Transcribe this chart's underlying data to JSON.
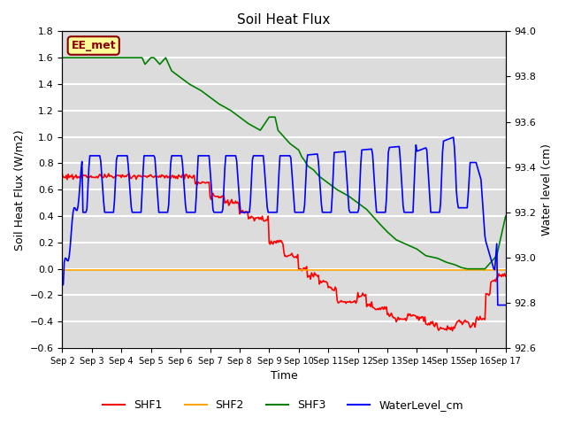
{
  "title": "Soil Heat Flux",
  "ylabel_left": "Soil Heat Flux (W/m2)",
  "ylabel_right": "Water level (cm)",
  "xlabel": "Time",
  "ylim_left": [
    -0.6,
    1.8
  ],
  "ylim_right": [
    92.6,
    94.0
  ],
  "bg_color": "#dcdcdc",
  "annotation_text": "EE_met",
  "annotation_facecolor": "#ffff99",
  "annotation_edgecolor": "#8b0000",
  "annotation_textcolor": "#8b0000",
  "series_colors": {
    "SHF1": "red",
    "SHF2": "orange",
    "SHF3": "green",
    "WaterLevel_cm": "blue"
  },
  "xtick_labels": [
    "Sep 2",
    "Sep 3",
    "Sep 4",
    "Sep 5",
    "Sep 6",
    "Sep 7",
    "Sep 8",
    "Sep 9",
    "Sep 10",
    "Sep 11",
    "Sep 12",
    "Sep 13",
    "Sep 14",
    "Sep 15",
    "Sep 16",
    "Sep 17"
  ],
  "grid_color": "white",
  "linewidth": 1.2,
  "left_yticks": [
    -0.6,
    -0.4,
    -0.2,
    0.0,
    0.2,
    0.4,
    0.6,
    0.8,
    1.0,
    1.2,
    1.4,
    1.6,
    1.8
  ],
  "right_yticks": [
    92.6,
    92.8,
    93.0,
    93.2,
    93.4,
    93.6,
    93.8,
    94.0
  ]
}
